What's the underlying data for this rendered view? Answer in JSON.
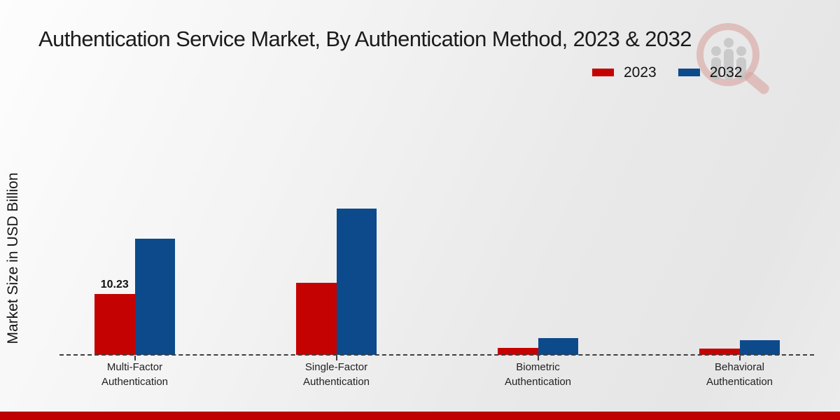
{
  "chart_data": {
    "type": "bar",
    "title": "Authentication Service Market, By Authentication Method, 2023 & 2032",
    "ylabel": "Market Size in USD Billion",
    "xlabel": "",
    "categories": [
      "Multi-Factor\nAuthentication",
      "Single-Factor\nAuthentication",
      "Biometric\nAuthentication",
      "Behavioral\nAuthentication"
    ],
    "series": [
      {
        "name": "2023",
        "color": "#c50202",
        "values": [
          10.23,
          12.1,
          1.2,
          1.1
        ]
      },
      {
        "name": "2032",
        "color": "#0c4a8c",
        "values": [
          19.5,
          24.6,
          2.8,
          2.5
        ]
      }
    ],
    "data_labels": [
      {
        "category_index": 0,
        "series_index": 0,
        "text": "10.23"
      }
    ],
    "ylim": [
      0,
      26
    ],
    "grid": false,
    "legend_position": "top-right",
    "baseline_style": "dashed",
    "value_precision_note": "only 10.23 labeled on chart; other values estimated from bar heights"
  },
  "legend": {
    "items": [
      {
        "label": "2023",
        "color": "#c50202"
      },
      {
        "label": "2032",
        "color": "#0c4a8c"
      }
    ]
  },
  "footer": {
    "bar_color": "#c00000"
  },
  "watermark": {
    "name": "market-research-future-logo",
    "ring_color": "#c0392b",
    "bar_color": "#8a8a8a"
  }
}
